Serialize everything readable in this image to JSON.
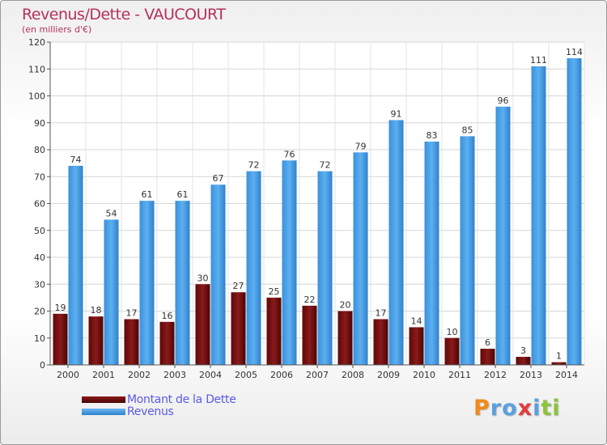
{
  "title": "Revenus/Dette - VAUCOURT",
  "subtitle": "(en milliers d'€)",
  "logo": {
    "text": [
      "P",
      "r",
      "o",
      "x",
      "i",
      "t",
      "i"
    ],
    "colors": [
      "#f08a1c",
      "#5aa0e0",
      "#5aa0e0",
      "#e23c3c",
      "#5aa0e0",
      "#8cc43c",
      "#8cc43c"
    ]
  },
  "chart_data": {
    "type": "bar",
    "title": "Revenus/Dette - VAUCOURT",
    "ylabel": "(en milliers d'€)",
    "xlabel": "",
    "ylim": [
      0,
      120
    ],
    "yticks": [
      0,
      10,
      20,
      30,
      40,
      50,
      60,
      70,
      80,
      90,
      100,
      110,
      120
    ],
    "grid": "horizontal",
    "legend_position": "bottom-left",
    "categories": [
      "2000",
      "2001",
      "2002",
      "2003",
      "2004",
      "2005",
      "2006",
      "2007",
      "2008",
      "2009",
      "2010",
      "2011",
      "2012",
      "2013",
      "2014"
    ],
    "series": [
      {
        "name": "Montant de la Dette",
        "color": "#7a1010",
        "values": [
          19,
          18,
          17,
          16,
          30,
          27,
          25,
          22,
          20,
          17,
          14,
          10,
          6,
          3,
          1
        ]
      },
      {
        "name": "Revenus",
        "color": "#3f9be6",
        "values": [
          74,
          54,
          61,
          61,
          67,
          72,
          76,
          72,
          79,
          91,
          83,
          85,
          96,
          111,
          114
        ]
      }
    ]
  }
}
